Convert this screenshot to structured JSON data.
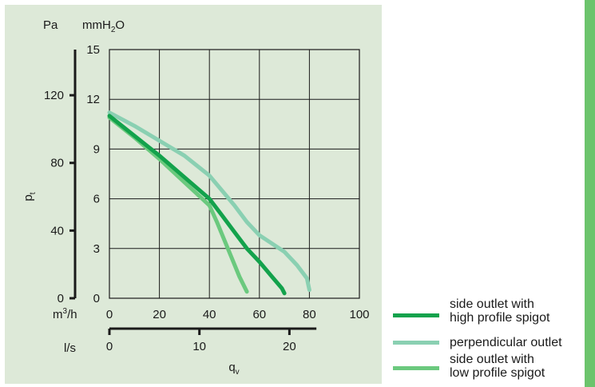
{
  "chart_data": {
    "type": "line",
    "left_unit": "Pa",
    "right_unit_base": "mmH",
    "right_unit_sub": "2",
    "right_unit_end": "O",
    "ylabel_base": "p",
    "ylabel_sub": "t",
    "xlabel_base": "q",
    "xlabel_sub": "v",
    "x_unit_m3h_base": "m",
    "x_unit_m3h_sup": "3",
    "x_unit_m3h_end": "/h",
    "x_unit_ls": "l/s",
    "xlim": [
      0,
      100
    ],
    "ylim_mmH2O": [
      0,
      15
    ],
    "ylim_Pa": [
      0,
      147
    ],
    "x_ticks_m3h": [
      "0",
      "20",
      "40",
      "60",
      "80",
      "100"
    ],
    "y_ticks_mmH2O": [
      "0",
      "3",
      "6",
      "9",
      "12",
      "15"
    ],
    "y_ticks_Pa": [
      "0",
      "40",
      "80",
      "120"
    ],
    "ls_ticks": [
      "0",
      "10",
      "20"
    ],
    "grid": true,
    "legend_position": "bottom-right",
    "colors": {
      "panel_bg": "#dde9d8",
      "side_stripe": "#6cc46c",
      "grid": "#1a1a1a"
    },
    "series": [
      {
        "name_line1": "side outlet with",
        "name_line2": "high profile spigot",
        "color": "#13a24c",
        "x": [
          0,
          10,
          20,
          30,
          40,
          45,
          50,
          55,
          60,
          65,
          69,
          70
        ],
        "y": [
          11.0,
          9.8,
          8.6,
          7.3,
          6.0,
          5.0,
          4.0,
          3.0,
          2.2,
          1.3,
          0.6,
          0.3
        ]
      },
      {
        "name_line1": "perpendicular outlet",
        "name_line2": "",
        "color": "#8ad0b2",
        "x": [
          0,
          10,
          20,
          30,
          40,
          45,
          50,
          55,
          60,
          65,
          70,
          75,
          79,
          80
        ],
        "y": [
          11.2,
          10.4,
          9.5,
          8.6,
          7.4,
          6.5,
          5.6,
          4.6,
          3.8,
          3.3,
          2.8,
          2.0,
          1.2,
          0.5
        ]
      },
      {
        "name_line1": "side outlet with",
        "name_line2": "low profile spigot",
        "color": "#6bc97e",
        "x": [
          0,
          10,
          20,
          30,
          35,
          40,
          43,
          46,
          49,
          52,
          55
        ],
        "y": [
          10.9,
          9.7,
          8.4,
          7.0,
          6.3,
          5.6,
          4.6,
          3.5,
          2.4,
          1.3,
          0.4
        ]
      }
    ]
  }
}
